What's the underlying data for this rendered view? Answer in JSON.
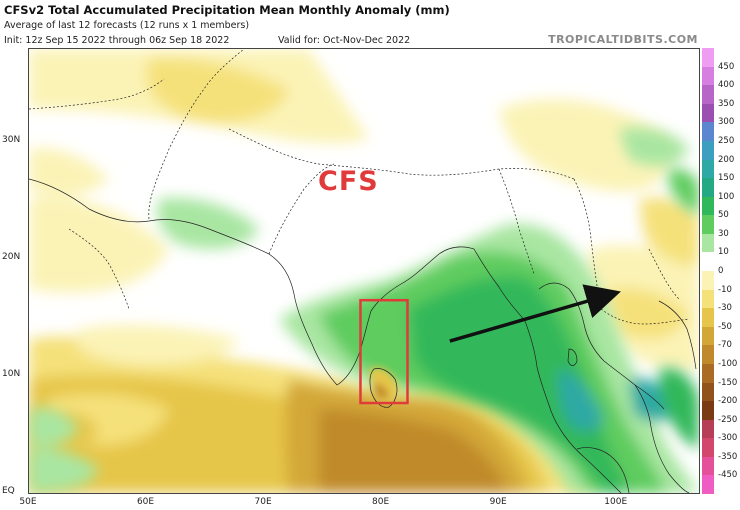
{
  "header": {
    "title": "CFSv2 Total Accumulated Precipitation Mean Monthly Anomaly (mm)",
    "subtitle": "Average of last 12 forecasts (12 runs x 1 members)",
    "init": "Init: 12z Sep 15 2022 through 06z Sep 18 2022",
    "valid": "Valid for: Oct-Nov-Dec 2022",
    "brand": "TROPICALTIDBITS.COM"
  },
  "map": {
    "lon_range": [
      50,
      107
    ],
    "lat_range": [
      0,
      38
    ],
    "y_ticks": [
      {
        "label": "30N",
        "lat": 30
      },
      {
        "label": "20N",
        "lat": 20
      },
      {
        "label": "10N",
        "lat": 10
      },
      {
        "label": "EQ",
        "lat": 0
      }
    ],
    "x_ticks": [
      {
        "label": "50E",
        "lon": 50
      },
      {
        "label": "60E",
        "lon": 60
      },
      {
        "label": "70E",
        "lon": 70
      },
      {
        "label": "80E",
        "lon": 80
      },
      {
        "label": "90E",
        "lon": 90
      },
      {
        "label": "100E",
        "lon": 100
      }
    ],
    "annotation_text": "CFS",
    "highlight_box": {
      "lon_range": [
        78.2,
        82.2
      ],
      "lat_range": [
        7.7,
        16.5
      ],
      "color": "#e03a3a"
    },
    "arrow": {
      "from": [
        85.8,
        13.0
      ],
      "to": [
        99.5,
        17.0
      ],
      "color": "#111111"
    }
  },
  "colorbar": {
    "levels": [
      {
        "label": "450",
        "color": "#ef9df3"
      },
      {
        "label": "400",
        "color": "#d77fe0"
      },
      {
        "label": "350",
        "color": "#b766c7"
      },
      {
        "label": "300",
        "color": "#9b4fb0"
      },
      {
        "label": "250",
        "color": "#5a87cf"
      },
      {
        "label": "200",
        "color": "#3d9fc0"
      },
      {
        "label": "150",
        "color": "#2fa9a5"
      },
      {
        "label": "100",
        "color": "#24a985"
      },
      {
        "label": "50",
        "color": "#31b85a"
      },
      {
        "label": "30",
        "color": "#5fcc5f"
      },
      {
        "label": "10",
        "color": "#a9e6a2"
      },
      {
        "label": "0",
        "color": "#ffffff"
      },
      {
        "label": "-10",
        "color": "#fbf3b6"
      },
      {
        "label": "-30",
        "color": "#f5e17a"
      },
      {
        "label": "-50",
        "color": "#e6c64a"
      },
      {
        "label": "-70",
        "color": "#d3a737"
      },
      {
        "label": "-100",
        "color": "#c08a2c"
      },
      {
        "label": "-150",
        "color": "#aa6c25"
      },
      {
        "label": "-200",
        "color": "#91521c"
      },
      {
        "label": "-250",
        "color": "#7a3b14"
      },
      {
        "label": "-300",
        "color": "#b63e57"
      },
      {
        "label": "-350",
        "color": "#d4476d"
      },
      {
        "label": "-450",
        "color": "#e4509a"
      },
      {
        "label": "",
        "color": "#ef5dc2"
      }
    ]
  }
}
